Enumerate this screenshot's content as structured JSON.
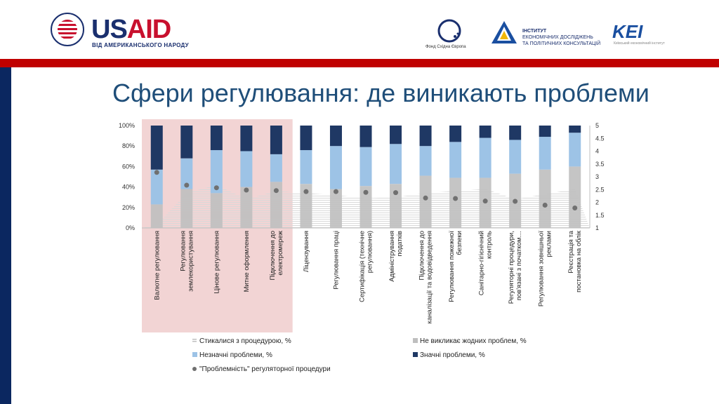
{
  "header": {
    "usaid_part1": "US",
    "usaid_part2": "AID",
    "usaid_tagline": "ВІД АМЕРИКАНСЬКОГО НАРОДУ",
    "fse_label": "Фонд Східна Європа",
    "ier_line1": "ІНСТИТУТ",
    "ier_line2": "ЕКОНОМІЧНИХ ДОСЛІДЖЕНЬ",
    "ier_line3": "ТА ПОЛІТИЧНИХ КОНСУЛЬТАЦІЙ",
    "kei_label": "KEI",
    "kei_sub": "Київський економічний інститут"
  },
  "colors": {
    "red_bar": "#c00000",
    "left_bar": "#0b2760",
    "title": "#1f4e79",
    "experienced": "#d9d9d9",
    "no_problems": "#bfbfbf",
    "minor": "#9dc3e6",
    "major": "#1f3864",
    "index": "#707070",
    "highlight": "#f2d4d4"
  },
  "slide": {
    "title": "Сфери регулювання: де виникають проблеми"
  },
  "chart_data": {
    "type": "bar",
    "stacked": true,
    "categories": [
      "Валютне регулювання",
      "Регулювання землекористування",
      "Цінове регулювання",
      "Митне оформлення",
      "Підключення до електромереж",
      "Ліцензування",
      "Регулювання праці",
      "Сертифікація (технічне регулювання)",
      "Адміністрування податків",
      "Підключення до каналізації та водовідведення",
      "Регулювання пожежної безпеки",
      "Санітарно-гігієнічний контроль",
      "Регуляторні процедури, пов'язані з початком…",
      "Регулювання зовнішньої реклами",
      "Реєстрація та постановка на облік"
    ],
    "series": [
      {
        "name": "Не викликає жодних проблем, %",
        "values": [
          23,
          38,
          34,
          40,
          45,
          43,
          38,
          41,
          43,
          51,
          49,
          49,
          53,
          57,
          60
        ]
      },
      {
        "name": "Незначні проблеми, %",
        "values": [
          34,
          30,
          42,
          35,
          27,
          33,
          42,
          38,
          39,
          29,
          35,
          39,
          33,
          32,
          33
        ]
      },
      {
        "name": "Значні проблеми, %",
        "values": [
          43,
          32,
          24,
          25,
          28,
          24,
          20,
          21,
          18,
          20,
          16,
          12,
          14,
          11,
          7
        ]
      }
    ],
    "experienced_series": {
      "name": "Стикалися з процедурою, %",
      "values": [
        3,
        34,
        42,
        28,
        36,
        34,
        32,
        29,
        30,
        34,
        36,
        38,
        28,
        33,
        38
      ]
    },
    "index_series": {
      "name": "\"Проблемність\" регуляторної процедури",
      "values": [
        3.17,
        2.67,
        2.57,
        2.48,
        2.46,
        2.42,
        2.42,
        2.39,
        2.38,
        2.17,
        2.15,
        2.05,
        2.04,
        1.89,
        1.78
      ]
    },
    "yaxis_left": {
      "ticks": [
        "0%",
        "20%",
        "40%",
        "60%",
        "80%",
        "100%"
      ],
      "ylim": [
        0,
        100
      ]
    },
    "yaxis_right": {
      "ticks": [
        "1",
        "1.5",
        "2",
        "2.5",
        "3",
        "3.5",
        "4",
        "4.5",
        "5"
      ],
      "ylim": [
        1,
        5
      ]
    },
    "highlighted_categories": 5,
    "legend": [
      "Стикалися з процедурою, %",
      "Не викликає жодних проблем, %",
      "Незначні проблеми, %",
      "Значні проблеми, %",
      "\"Проблемність\" регуляторної процедури"
    ],
    "legend_position": "bottom"
  }
}
